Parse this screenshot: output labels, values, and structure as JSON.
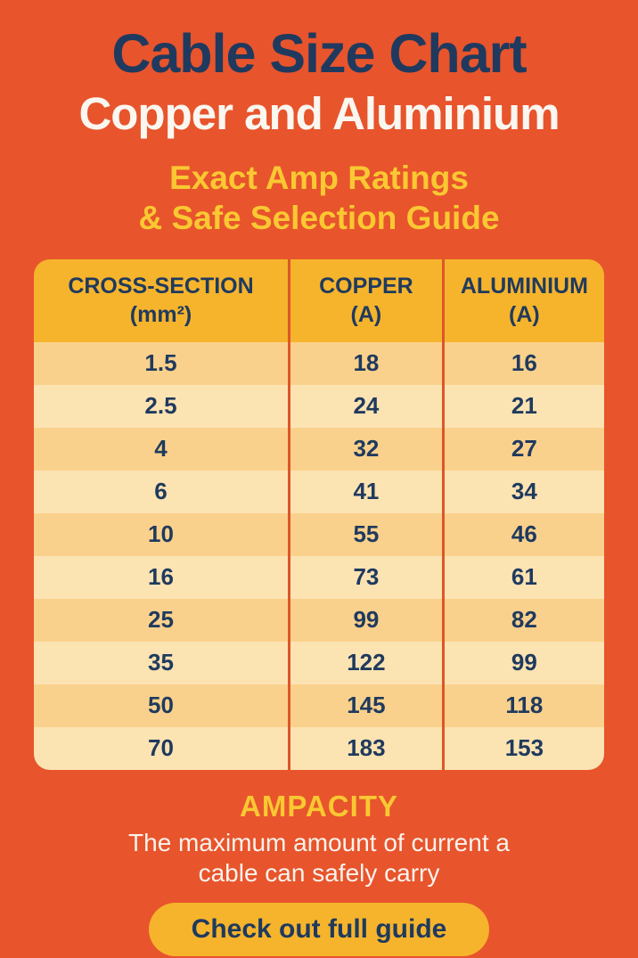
{
  "page": {
    "title": "Cable Size Chart",
    "subtitle": "Copper and Aluminium",
    "tagline_line1": "Exact Amp Ratings",
    "tagline_line2": "& Safe Selection Guide"
  },
  "colors": {
    "background_orange": "#E8542C",
    "navy_text": "#1F3A5E",
    "white_text": "#F7F3EC",
    "yellow_accent": "#F9C832",
    "table_header_gold": "#F6B42C",
    "row_dark": "#FAD18C",
    "row_light": "#FCE3B2",
    "divider": "#DD5629",
    "button_gold": "#F6B42C"
  },
  "table": {
    "headers": [
      {
        "line1": "CROSS-SECTION",
        "line2": "(mm²)"
      },
      {
        "line1": "COPPER",
        "line2": "(A)"
      },
      {
        "line1": "ALUMINIUM",
        "line2": "(A)"
      }
    ],
    "rows": [
      {
        "cross_section": "1.5",
        "copper": "18",
        "aluminium": "16"
      },
      {
        "cross_section": "2.5",
        "copper": "24",
        "aluminium": "21"
      },
      {
        "cross_section": "4",
        "copper": "32",
        "aluminium": "27"
      },
      {
        "cross_section": "6",
        "copper": "41",
        "aluminium": "34"
      },
      {
        "cross_section": "10",
        "copper": "55",
        "aluminium": "46"
      },
      {
        "cross_section": "16",
        "copper": "73",
        "aluminium": "61"
      },
      {
        "cross_section": "25",
        "copper": "99",
        "aluminium": "82"
      },
      {
        "cross_section": "35",
        "copper": "122",
        "aluminium": "99"
      },
      {
        "cross_section": "50",
        "copper": "145",
        "aluminium": "118"
      },
      {
        "cross_section": "70",
        "copper": "183",
        "aluminium": "153"
      }
    ]
  },
  "footer": {
    "heading": "AMPACITY",
    "description": "The maximum amount of current a cable can safely carry",
    "button_label": "Check out full guide"
  },
  "chart_data": {
    "type": "table",
    "title": "Cable Size Chart",
    "subtitle": "Copper and Aluminium",
    "note": "Exact Amp Ratings & Safe Selection Guide",
    "columns": [
      "CROSS-SECTION (mm²)",
      "COPPER (A)",
      "ALUMINIUM (A)"
    ],
    "cross_section_mm2": [
      1.5,
      2.5,
      4,
      6,
      10,
      16,
      25,
      35,
      50,
      70
    ],
    "copper_amps": [
      18,
      24,
      32,
      41,
      55,
      73,
      99,
      122,
      145,
      183
    ],
    "aluminium_amps": [
      16,
      21,
      27,
      34,
      46,
      61,
      82,
      99,
      118,
      153
    ],
    "definition": "AMPACITY: The maximum amount of current a cable can safely carry"
  }
}
